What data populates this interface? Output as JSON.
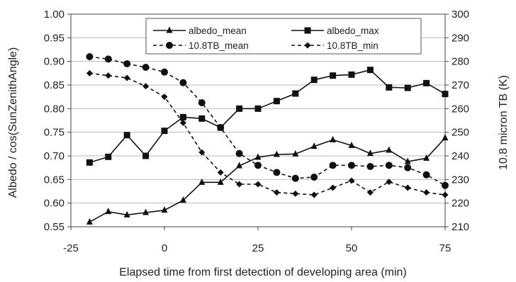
{
  "chart_data": {
    "type": "line",
    "title": "",
    "xlabel": "Elapsed time from first detection of developing area (min)",
    "ylabel": "Albedo / cos(SunZenithAngle)",
    "y2label": "10.8 micron TB (K)",
    "xlim": [
      -25,
      75
    ],
    "ylim": [
      0.55,
      1.0
    ],
    "y2lim": [
      210,
      300
    ],
    "x_ticks": [
      "-25",
      "0",
      "25",
      "50",
      "75"
    ],
    "y_ticks": [
      "0.55",
      "0.60",
      "0.65",
      "0.70",
      "0.75",
      "0.80",
      "0.85",
      "0.90",
      "0.95",
      "1.00"
    ],
    "y2_ticks": [
      "210",
      "220",
      "230",
      "240",
      "250",
      "260",
      "270",
      "280",
      "290",
      "300"
    ],
    "grid": "horizontal",
    "legend_position": "top-center",
    "x": [
      -20,
      -15,
      -10,
      -5,
      0,
      5,
      10,
      15,
      20,
      25,
      30,
      35,
      40,
      45,
      50,
      55,
      60,
      65,
      70,
      75
    ],
    "series": [
      {
        "name": "albedo_mean",
        "axis": "left",
        "marker": "triangle",
        "line": "solid",
        "values": [
          0.56,
          0.582,
          0.575,
          0.58,
          0.585,
          0.606,
          0.644,
          0.644,
          0.679,
          0.697,
          0.703,
          0.704,
          0.72,
          0.734,
          0.722,
          0.705,
          0.712,
          0.688,
          0.695,
          0.738
        ]
      },
      {
        "name": "albedo_max",
        "axis": "left",
        "marker": "square",
        "line": "solid",
        "values": [
          0.686,
          0.698,
          0.744,
          0.7,
          0.753,
          0.782,
          0.779,
          0.76,
          0.8,
          0.8,
          0.816,
          0.832,
          0.861,
          0.87,
          0.872,
          0.882,
          0.845,
          0.844,
          0.854,
          0.831
        ]
      },
      {
        "name": "10.8TB_mean",
        "axis": "right",
        "marker": "circle",
        "line": "dashed",
        "values": [
          282,
          281,
          279,
          277.5,
          275.5,
          271,
          262.5,
          252,
          241,
          236,
          233,
          230.5,
          231,
          236,
          236,
          235.5,
          236,
          235,
          232,
          227.5
        ]
      },
      {
        "name": "10.8TB_min",
        "axis": "right",
        "marker": "diamond",
        "line": "dashed",
        "values": [
          275,
          274,
          273,
          269.5,
          265,
          254,
          241.5,
          233,
          228,
          228,
          224.5,
          224,
          223.5,
          226.5,
          229.5,
          224.5,
          229,
          226.5,
          224.5,
          223.5
        ]
      }
    ]
  }
}
